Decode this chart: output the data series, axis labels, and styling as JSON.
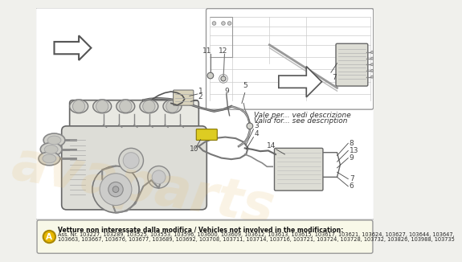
{
  "bg_color": "#f0f0ec",
  "diagram_bg": "#ffffff",
  "border_color": "#bbbbbb",
  "notice_bg": "#f8f8e8",
  "notice_border": "#999999",
  "circle_a_color": "#e8b800",
  "notice_title": "Vetture non interessate dalla modifica / Vehicles not involved in the modification:",
  "notice_line1": "Ass. Nr. 103227, 103289, 103525, 103553, 103596, 103600, 103609, 103612, 103613, 103615, 103617, 103621, 103624, 103627, 103644, 103647,",
  "notice_line2": "103663, 103667, 103676, 103677, 103689, 103692, 103708, 103711, 103714, 103716, 103721, 103724, 103728, 103732, 103826, 103988, 103735",
  "callout_line1": "Vale per... vedi descrizione",
  "callout_line2": "Valid for... see description",
  "watermark": "avaparts",
  "inset_border": "#888888",
  "sketch_lw": 0.8,
  "dark": "#444444",
  "mid": "#777777",
  "light": "#aaaaaa",
  "engine_fill": "#e8e8e2",
  "engine_edge": "#666666"
}
